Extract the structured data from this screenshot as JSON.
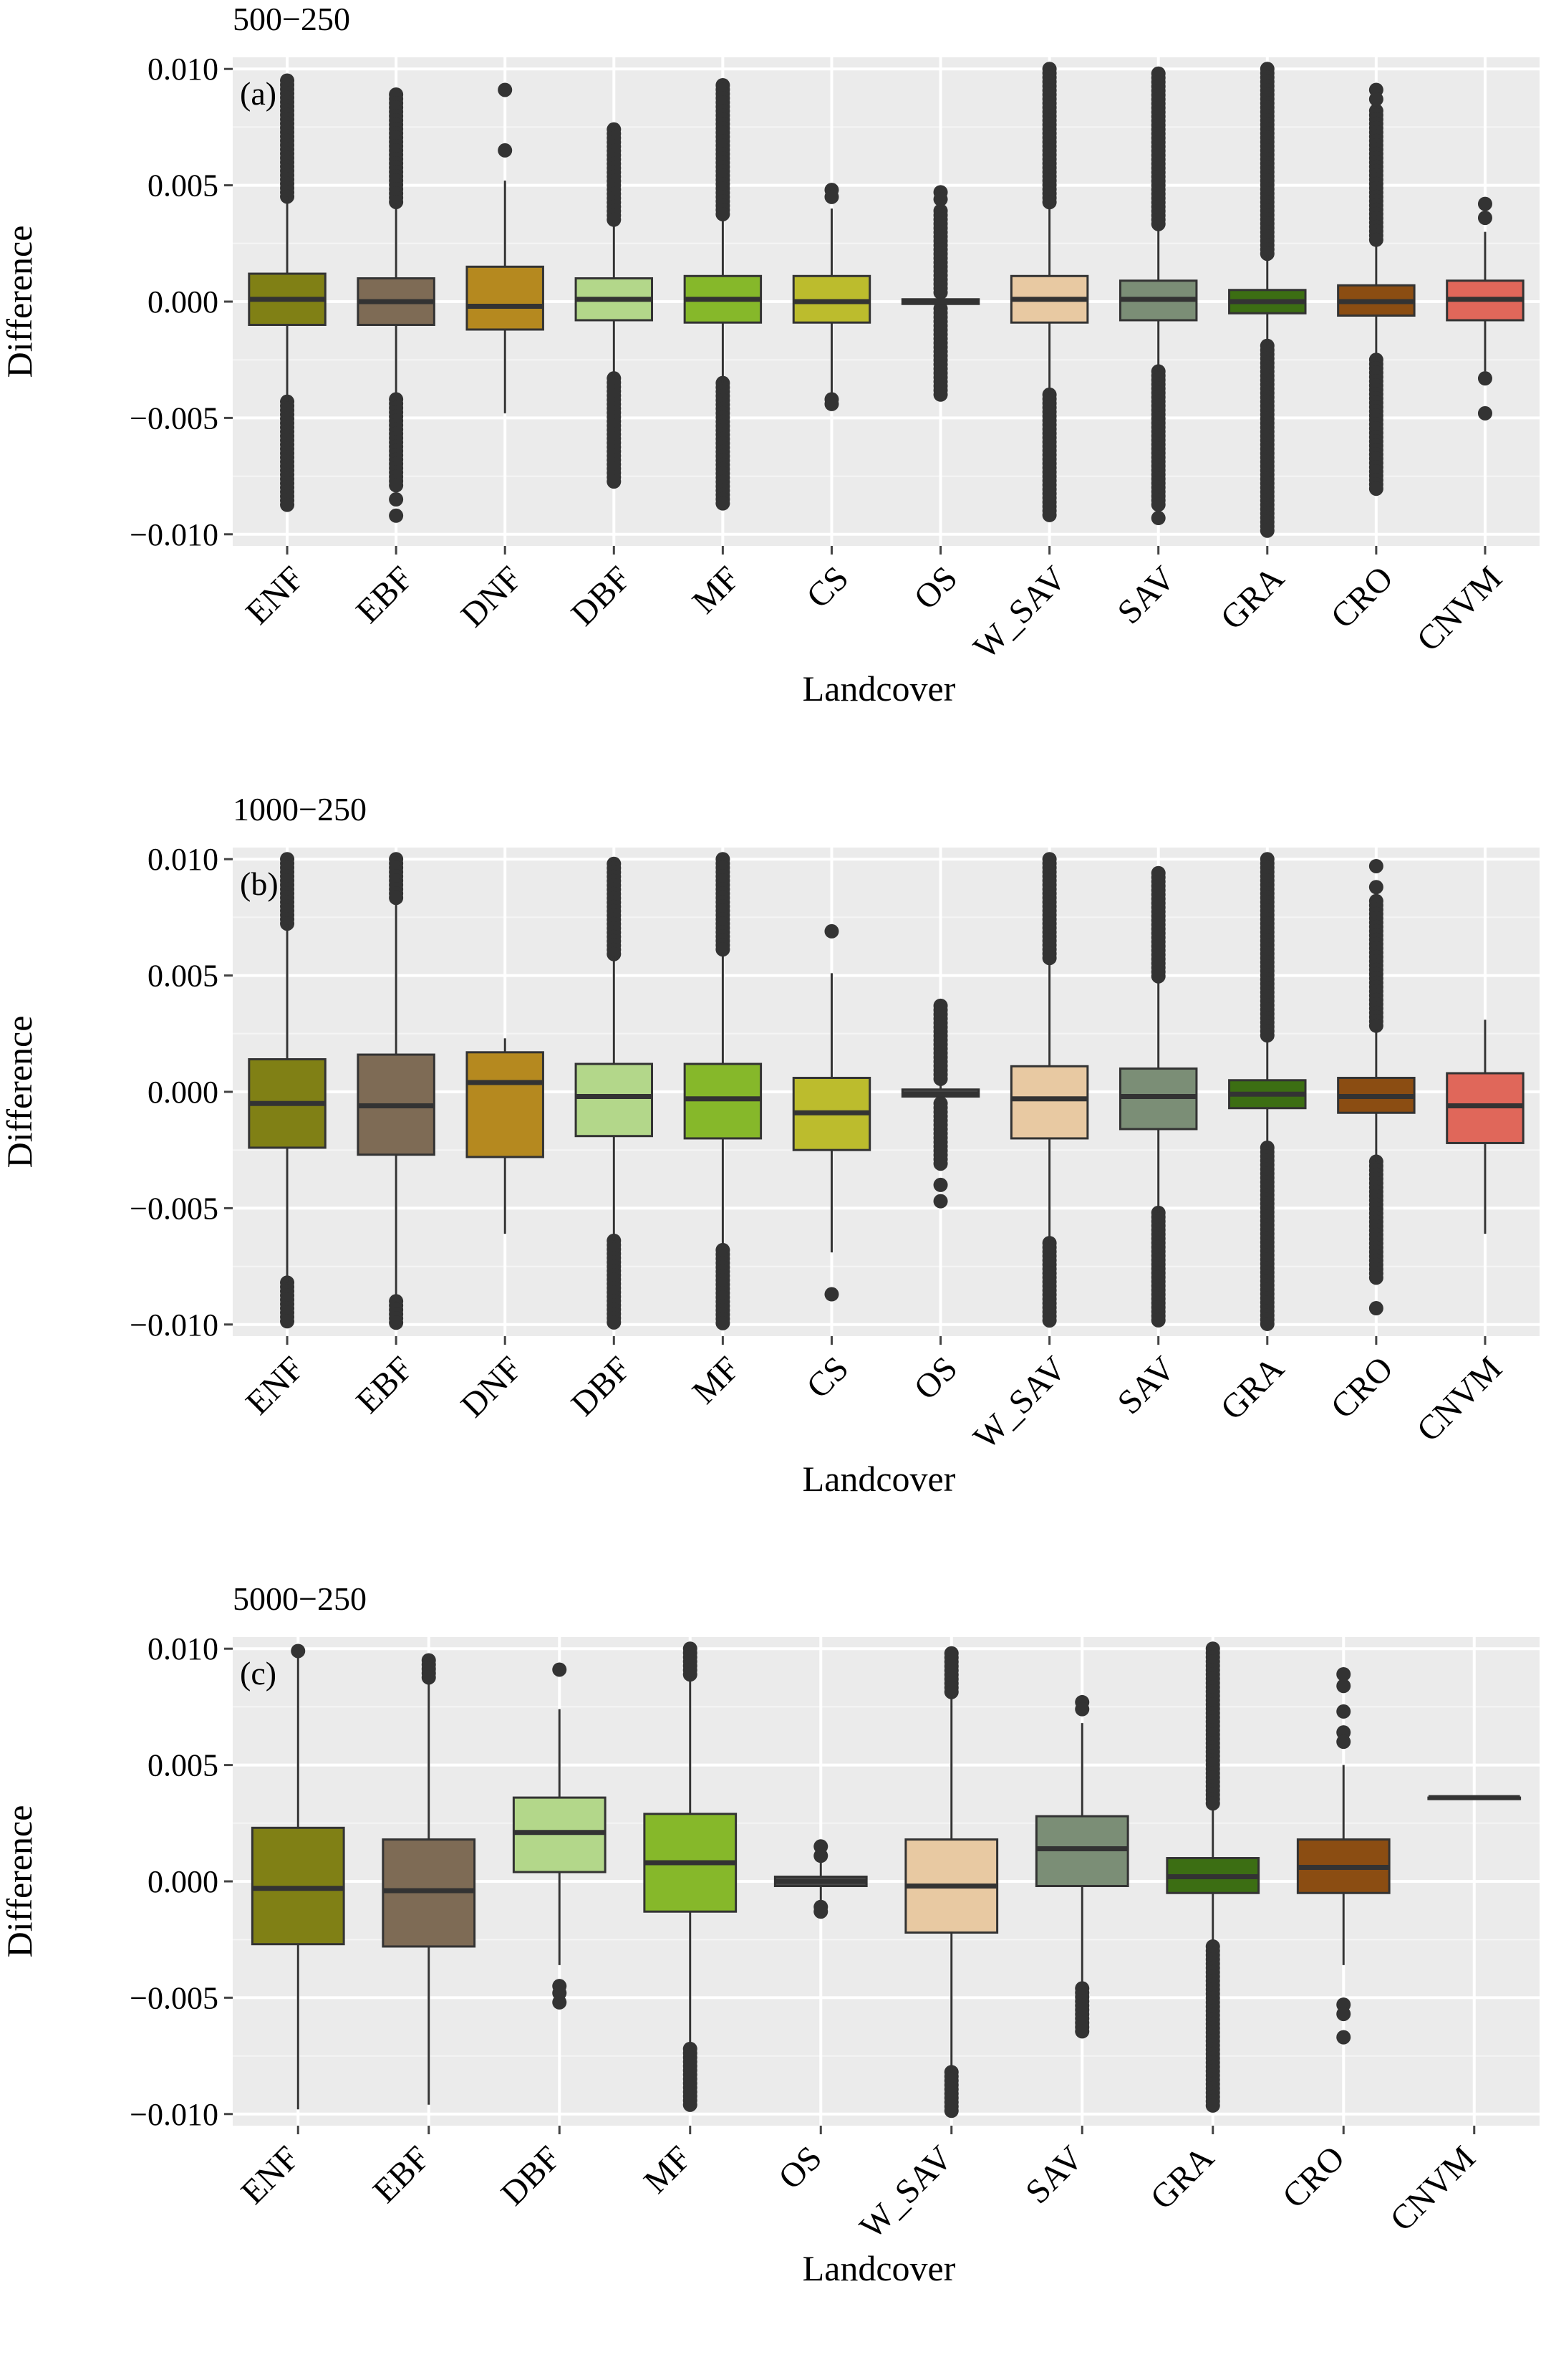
{
  "figure": {
    "x_axis_label": "Landcover",
    "y_axis_label": "Difference"
  },
  "chart_data": [
    {
      "type": "box",
      "title": "500−250",
      "panel_tag": "(a)",
      "xlabel": "Landcover",
      "ylabel": "Difference",
      "ylim": [
        -0.0105,
        0.0105
      ],
      "yticks": [
        0.01,
        0.005,
        0.0,
        -0.005,
        -0.01
      ],
      "ytick_labels": [
        "0.010",
        "0.005",
        "0.000",
        "−0.005",
        "−0.010"
      ],
      "grid": true,
      "categories": [
        "ENF",
        "EBF",
        "DNF",
        "DBF",
        "MF",
        "CS",
        "OS",
        "W_SAV",
        "SAV",
        "GRA",
        "CRO",
        "CNVM"
      ],
      "colors": [
        "#808015",
        "#7e6b55",
        "#b5891f",
        "#b3d78a",
        "#86b82a",
        "#bcbc2d",
        "#4a4a4a",
        "#e8c9a2",
        "#7b8e76",
        "#3c6e13",
        "#8b4d12",
        "#e0675a"
      ],
      "boxes": [
        {
          "q1": -0.001,
          "median": 0.0001,
          "q3": 0.0012,
          "whisker_low": -0.0043,
          "whisker_high": 0.0045,
          "outlier_ranges": [
            [
              0.0045,
              0.0095
            ],
            [
              -0.0088,
              -0.0043
            ]
          ],
          "outliers": []
        },
        {
          "q1": -0.001,
          "median": 0.0,
          "q3": 0.001,
          "whisker_low": -0.0042,
          "whisker_high": 0.0042,
          "outlier_ranges": [
            [
              0.0042,
              0.0089
            ],
            [
              -0.008,
              -0.0042
            ]
          ],
          "outliers": [
            -0.0085,
            -0.0092
          ]
        },
        {
          "q1": -0.0012,
          "median": -0.0002,
          "q3": 0.0015,
          "whisker_low": -0.0048,
          "whisker_high": 0.0052,
          "outlier_ranges": [],
          "outliers": [
            0.0091,
            0.0065
          ]
        },
        {
          "q1": -0.0008,
          "median": 0.0001,
          "q3": 0.001,
          "whisker_low": -0.0033,
          "whisker_high": 0.0035,
          "outlier_ranges": [
            [
              0.0035,
              0.0074
            ],
            [
              -0.0078,
              -0.0033
            ]
          ],
          "outliers": []
        },
        {
          "q1": -0.0009,
          "median": 0.0001,
          "q3": 0.0011,
          "whisker_low": -0.0035,
          "whisker_high": 0.0036,
          "outlier_ranges": [
            [
              0.0036,
              0.0093
            ],
            [
              -0.0088,
              -0.0035
            ]
          ],
          "outliers": []
        },
        {
          "q1": -0.0009,
          "median": 0.0,
          "q3": 0.0011,
          "whisker_low": -0.004,
          "whisker_high": 0.004,
          "outlier_ranges": [],
          "outliers": [
            0.0048,
            0.0045,
            -0.0042,
            -0.0044
          ]
        },
        {
          "q1": -0.0001,
          "median": 0.0,
          "q3": 0.0001,
          "whisker_low": -0.0003,
          "whisker_high": 0.0003,
          "outlier_ranges": [
            [
              0.0003,
              0.0039
            ],
            [
              -0.0041,
              -0.0003
            ]
          ],
          "outliers": [
            0.0047,
            0.0044
          ]
        },
        {
          "q1": -0.0009,
          "median": 0.0001,
          "q3": 0.0011,
          "whisker_low": -0.004,
          "whisker_high": 0.0042,
          "outlier_ranges": [
            [
              0.0042,
              0.01
            ],
            [
              -0.0092,
              -0.004
            ]
          ],
          "outliers": []
        },
        {
          "q1": -0.0008,
          "median": 0.0001,
          "q3": 0.0009,
          "whisker_low": -0.003,
          "whisker_high": 0.0033,
          "outlier_ranges": [
            [
              0.0033,
              0.0098
            ],
            [
              -0.0088,
              -0.003
            ]
          ],
          "outliers": [
            -0.0093
          ]
        },
        {
          "q1": -0.0005,
          "median": 0.0,
          "q3": 0.0005,
          "whisker_low": -0.0019,
          "whisker_high": 0.002,
          "outlier_ranges": [
            [
              0.002,
              0.01
            ],
            [
              -0.01,
              -0.0019
            ]
          ],
          "outliers": []
        },
        {
          "q1": -0.0006,
          "median": 0.0,
          "q3": 0.0007,
          "whisker_low": -0.0025,
          "whisker_high": 0.0025,
          "outlier_ranges": [
            [
              0.0025,
              0.0082
            ],
            [
              -0.0082,
              -0.0025
            ]
          ],
          "outliers": [
            0.0091,
            0.0087
          ]
        },
        {
          "q1": -0.0008,
          "median": 0.0001,
          "q3": 0.0009,
          "whisker_low": -0.003,
          "whisker_high": 0.003,
          "outlier_ranges": [],
          "outliers": [
            0.0042,
            0.0036,
            -0.0033,
            -0.0048
          ]
        }
      ]
    },
    {
      "type": "box",
      "title": "1000−250",
      "panel_tag": "(b)",
      "xlabel": "Landcover",
      "ylabel": "Difference",
      "ylim": [
        -0.0105,
        0.0105
      ],
      "yticks": [
        0.01,
        0.005,
        0.0,
        -0.005,
        -0.01
      ],
      "ytick_labels": [
        "0.010",
        "0.005",
        "0.000",
        "−0.005",
        "−0.010"
      ],
      "grid": true,
      "categories": [
        "ENF",
        "EBF",
        "DNF",
        "DBF",
        "MF",
        "CS",
        "OS",
        "W_SAV",
        "SAV",
        "GRA",
        "CRO",
        "CNVM"
      ],
      "colors": [
        "#808015",
        "#7e6b55",
        "#b5891f",
        "#b3d78a",
        "#86b82a",
        "#bcbc2d",
        "#4a4a4a",
        "#e8c9a2",
        "#7b8e76",
        "#3c6e13",
        "#8b4d12",
        "#e0675a"
      ],
      "boxes": [
        {
          "q1": -0.0024,
          "median": -0.0005,
          "q3": 0.0014,
          "whisker_low": -0.0082,
          "whisker_high": 0.0072,
          "outlier_ranges": [
            [
              0.0072,
              0.01
            ],
            [
              -0.01,
              -0.0082
            ]
          ],
          "outliers": []
        },
        {
          "q1": -0.0027,
          "median": -0.0006,
          "q3": 0.0016,
          "whisker_low": -0.009,
          "whisker_high": 0.0082,
          "outlier_ranges": [
            [
              0.0082,
              0.01
            ],
            [
              -0.01,
              -0.009
            ]
          ],
          "outliers": []
        },
        {
          "q1": -0.0028,
          "median": 0.0004,
          "q3": 0.0017,
          "whisker_low": -0.0061,
          "whisker_high": 0.0023,
          "outlier_ranges": [],
          "outliers": []
        },
        {
          "q1": -0.0019,
          "median": -0.0002,
          "q3": 0.0012,
          "whisker_low": -0.0064,
          "whisker_high": 0.0058,
          "outlier_ranges": [
            [
              0.0058,
              0.0098
            ],
            [
              -0.01,
              -0.0064
            ]
          ],
          "outliers": []
        },
        {
          "q1": -0.002,
          "median": -0.0003,
          "q3": 0.0012,
          "whisker_low": -0.0068,
          "whisker_high": 0.006,
          "outlier_ranges": [
            [
              0.006,
              0.01
            ],
            [
              -0.01,
              -0.0068
            ]
          ],
          "outliers": []
        },
        {
          "q1": -0.0025,
          "median": -0.0009,
          "q3": 0.0006,
          "whisker_low": -0.0069,
          "whisker_high": 0.0051,
          "outlier_ranges": [],
          "outliers": [
            0.0069,
            -0.0087
          ]
        },
        {
          "q1": -0.0002,
          "median": -0.0001,
          "q3": 0.0001,
          "whisker_low": -0.0005,
          "whisker_high": 0.0005,
          "outlier_ranges": [
            [
              0.0005,
              0.0037
            ],
            [
              -0.0031,
              -0.0005
            ]
          ],
          "outliers": [
            -0.004,
            -0.0047
          ]
        },
        {
          "q1": -0.002,
          "median": -0.0003,
          "q3": 0.0011,
          "whisker_low": -0.0065,
          "whisker_high": 0.0056,
          "outlier_ranges": [
            [
              0.0056,
              0.01
            ],
            [
              -0.01,
              -0.0065
            ]
          ],
          "outliers": []
        },
        {
          "q1": -0.0016,
          "median": -0.0002,
          "q3": 0.001,
          "whisker_low": -0.0052,
          "whisker_high": 0.0048,
          "outlier_ranges": [
            [
              0.0048,
              0.0094
            ],
            [
              -0.01,
              -0.0052
            ]
          ],
          "outliers": []
        },
        {
          "q1": -0.0007,
          "median": -0.0001,
          "q3": 0.0005,
          "whisker_low": -0.0024,
          "whisker_high": 0.0023,
          "outlier_ranges": [
            [
              0.0023,
              0.01
            ],
            [
              -0.01,
              -0.0024
            ]
          ],
          "outliers": []
        },
        {
          "q1": -0.0009,
          "median": -0.0002,
          "q3": 0.0006,
          "whisker_low": -0.003,
          "whisker_high": 0.0027,
          "outlier_ranges": [
            [
              0.0027,
              0.0082
            ],
            [
              -0.008,
              -0.003
            ]
          ],
          "outliers": [
            0.0097,
            0.0088,
            -0.0093
          ]
        },
        {
          "q1": -0.0022,
          "median": -0.0006,
          "q3": 0.0008,
          "whisker_low": -0.0061,
          "whisker_high": 0.0031,
          "outlier_ranges": [],
          "outliers": []
        }
      ]
    },
    {
      "type": "box",
      "title": "5000−250",
      "panel_tag": "(c)",
      "xlabel": "Landcover",
      "ylabel": "Difference",
      "ylim": [
        -0.0105,
        0.0105
      ],
      "yticks": [
        0.01,
        0.005,
        0.0,
        -0.005,
        -0.01
      ],
      "ytick_labels": [
        "0.010",
        "0.005",
        "0.000",
        "−0.005",
        "−0.010"
      ],
      "grid": true,
      "categories": [
        "ENF",
        "EBF",
        "DBF",
        "MF",
        "OS",
        "W_SAV",
        "SAV",
        "GRA",
        "CRO",
        "CNVM"
      ],
      "colors": [
        "#808015",
        "#7e6b55",
        "#b3d78a",
        "#86b82a",
        "#4a4a4a",
        "#e8c9a2",
        "#7b8e76",
        "#3c6e13",
        "#8b4d12",
        "#e0675a"
      ],
      "boxes": [
        {
          "q1": -0.0027,
          "median": -0.0003,
          "q3": 0.0023,
          "whisker_low": -0.0098,
          "whisker_high": 0.0098,
          "outlier_ranges": [],
          "outliers": [
            0.0099
          ]
        },
        {
          "q1": -0.0028,
          "median": -0.0004,
          "q3": 0.0018,
          "whisker_low": -0.0096,
          "whisker_high": 0.0086,
          "outlier_ranges": [
            [
              0.0086,
              0.0095
            ]
          ],
          "outliers": []
        },
        {
          "q1": 0.0004,
          "median": 0.0021,
          "q3": 0.0036,
          "whisker_low": -0.0036,
          "whisker_high": 0.0074,
          "outlier_ranges": [],
          "outliers": [
            0.0091,
            -0.0045,
            -0.0048,
            -0.0052
          ]
        },
        {
          "q1": -0.0013,
          "median": 0.0008,
          "q3": 0.0029,
          "whisker_low": -0.0072,
          "whisker_high": 0.0088,
          "outlier_ranges": [
            [
              0.0088,
              0.01
            ],
            [
              -0.0097,
              -0.0072
            ]
          ],
          "outliers": []
        },
        {
          "q1": -0.0002,
          "median": 0.0,
          "q3": 0.0002,
          "whisker_low": -0.0008,
          "whisker_high": 0.0008,
          "outlier_ranges": [],
          "outliers": [
            0.0015,
            0.0011,
            -0.0011,
            -0.0013
          ]
        },
        {
          "q1": -0.0022,
          "median": -0.0002,
          "q3": 0.0018,
          "whisker_low": -0.0082,
          "whisker_high": 0.008,
          "outlier_ranges": [
            [
              0.008,
              0.0098
            ],
            [
              -0.01,
              -0.0082
            ]
          ],
          "outliers": []
        },
        {
          "q1": -0.0002,
          "median": 0.0014,
          "q3": 0.0028,
          "whisker_low": -0.0046,
          "whisker_high": 0.0068,
          "outlier_ranges": [
            [
              -0.0066,
              -0.0046
            ]
          ],
          "outliers": [
            0.0077,
            0.0074
          ]
        },
        {
          "q1": -0.0005,
          "median": 0.0002,
          "q3": 0.001,
          "whisker_low": -0.0028,
          "whisker_high": 0.0032,
          "outlier_ranges": [
            [
              0.0032,
              0.01
            ],
            [
              -0.0098,
              -0.0028
            ]
          ],
          "outliers": []
        },
        {
          "q1": -0.0005,
          "median": 0.0006,
          "q3": 0.0018,
          "whisker_low": -0.0036,
          "whisker_high": 0.005,
          "outlier_ranges": [],
          "outliers": [
            0.0089,
            0.0084,
            0.0073,
            0.0064,
            0.006,
            -0.0053,
            -0.0057,
            -0.0067
          ]
        },
        {
          "q1": 0.0036,
          "median": 0.0036,
          "q3": 0.0036,
          "whisker_low": 0.0036,
          "whisker_high": 0.0036,
          "outlier_ranges": [],
          "outliers": []
        }
      ]
    }
  ]
}
